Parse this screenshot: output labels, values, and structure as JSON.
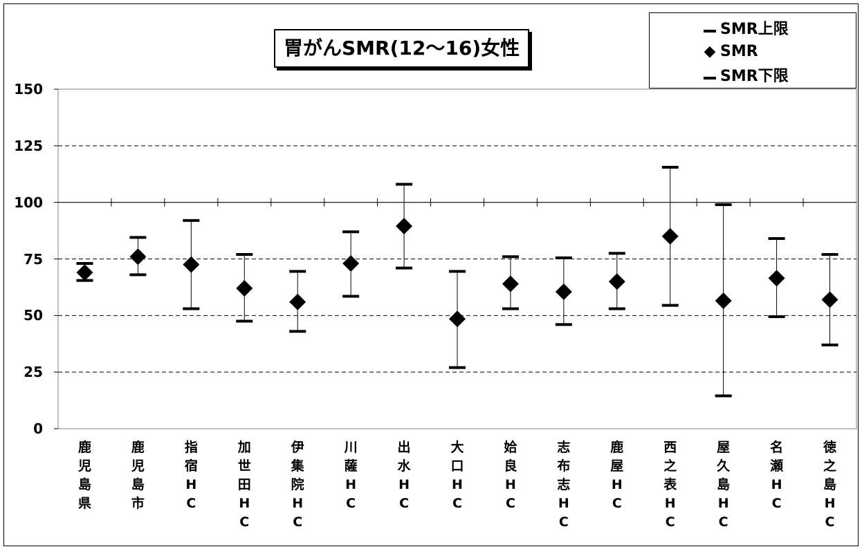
{
  "chart_data": {
    "type": "scatter",
    "title": "胃がんSMR(12～16)女性",
    "ylim": [
      0,
      150
    ],
    "yticks": [
      0,
      25,
      50,
      75,
      100,
      125,
      150
    ],
    "grid": "dashed horizontal at 25, 50, 75, 125; solid reference line at 100",
    "legend": {
      "placement": "top-right",
      "entries": [
        "SMR上限",
        "SMR",
        "SMR下限"
      ]
    },
    "categories": [
      "鹿\n児\n島\n県",
      "鹿\n児\n島\n市",
      "指\n宿\nH\nC",
      "加\n世\n田\nH\nC",
      "伊\n集\n院\nH\nC",
      "川\n薩\nH\nC",
      "出\n水\nH\nC",
      "大\n口\nH\nC",
      "姶\n良\nH\nC",
      "志\n布\n志\nH\nC",
      "鹿\n屋\nH\nC",
      "西\n之\n表\nH\nC",
      "屋\n久\n島\nH\nC",
      "名\n瀬\nH\nC",
      "徳\n之\n島\nH\nC"
    ],
    "series": [
      {
        "name": "SMR上限",
        "values": [
          73,
          84.5,
          92,
          77,
          69.5,
          87,
          108,
          69.5,
          76,
          75.5,
          77.5,
          115.5,
          99,
          84,
          77
        ]
      },
      {
        "name": "SMR",
        "values": [
          69,
          76,
          72.5,
          62,
          56,
          73,
          89.5,
          48.5,
          64,
          60.5,
          65,
          85,
          56.5,
          66.5,
          57
        ]
      },
      {
        "name": "SMR下限",
        "values": [
          65.5,
          68,
          53,
          47.5,
          43,
          58.5,
          71,
          27,
          53,
          46,
          53,
          54.5,
          14.5,
          49.5,
          37
        ]
      }
    ]
  }
}
